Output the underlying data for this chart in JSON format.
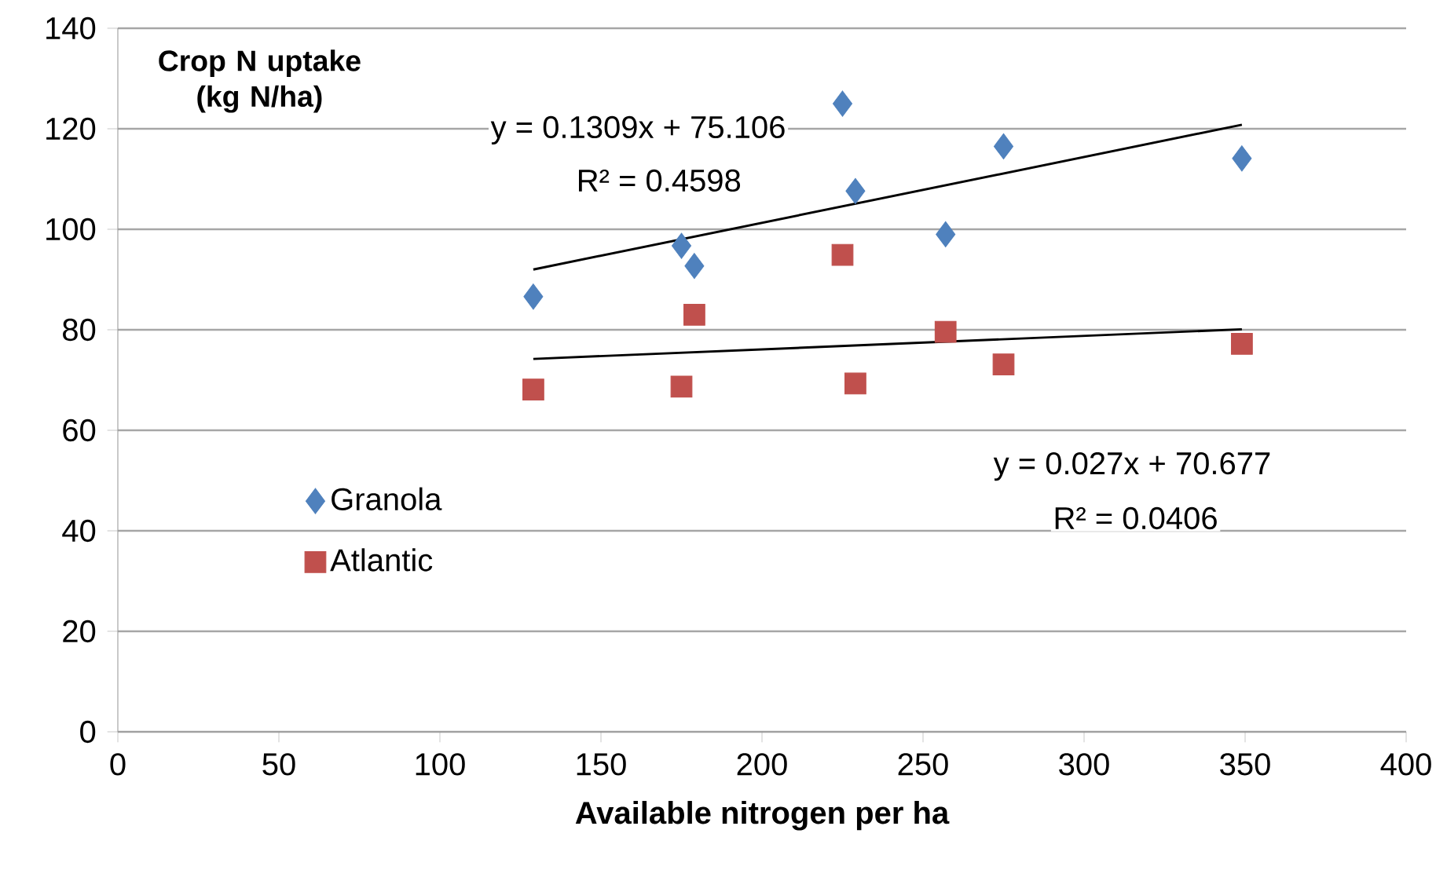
{
  "chart_data": {
    "type": "scatter",
    "xlabel": "Available nitrogen per ha",
    "ylabel": "Crop N uptake (kg N/ha)",
    "xlim": [
      0,
      400
    ],
    "xticks": [
      0,
      50,
      100,
      150,
      200,
      250,
      300,
      350,
      400
    ],
    "ylim": [
      0,
      140
    ],
    "yticks": [
      0,
      20,
      40,
      60,
      80,
      100,
      120,
      140
    ],
    "grid": "y",
    "legend": "left",
    "series": [
      {
        "name": "Granola",
        "color": "#4f81bd",
        "marker": "diamond",
        "x": [
          129,
          175,
          179,
          225,
          229,
          257,
          275,
          349
        ],
        "values": [
          86.6,
          96.7,
          92.7,
          125,
          107.6,
          99,
          116.5,
          114.1
        ]
      },
      {
        "name": "Atlantic",
        "color": "#c0504d",
        "marker": "square",
        "x": [
          129,
          175,
          179,
          225,
          229,
          257,
          275,
          349
        ],
        "values": [
          68.1,
          68.7,
          83,
          94.9,
          69.3,
          79.6,
          73.1,
          77.2
        ]
      },
      {
        "type": "line",
        "color": "#000000",
        "marker": "none",
        "x": [
          129,
          349
        ],
        "values": [
          92,
          120.8
        ]
      },
      {
        "type": "line",
        "color": "#000000",
        "marker": "none",
        "x": [
          129,
          349
        ],
        "values": [
          74.2,
          80.1
        ]
      }
    ],
    "annotations": [
      "y = 0.1309x + 75.106",
      "R² = 0.4598",
      "y = 0.027x + 70.677",
      "R² = 0.0406"
    ]
  }
}
